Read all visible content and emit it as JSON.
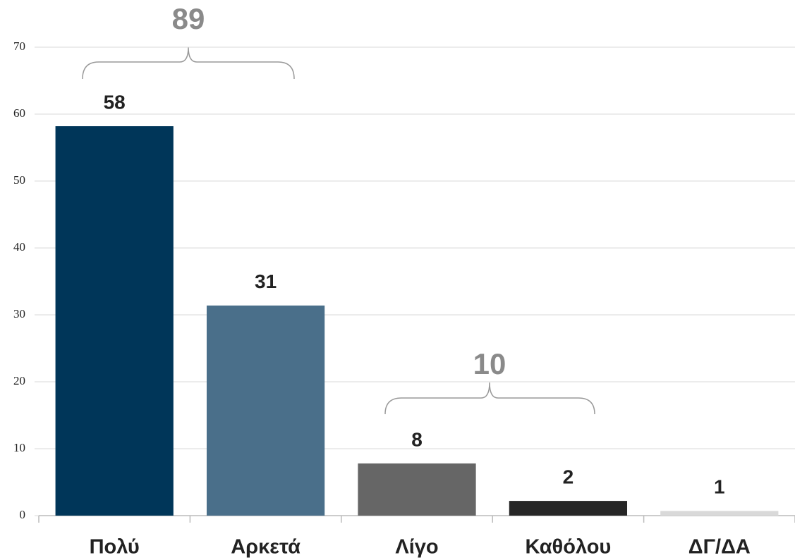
{
  "chart_data": {
    "type": "bar",
    "categories": [
      "Πολύ",
      "Αρκετά",
      "Λίγο",
      "Καθόλου",
      "ΔΓ/ΔΑ"
    ],
    "values": [
      58.2,
      31.4,
      7.8,
      2.2,
      0.7
    ],
    "value_labels": [
      "58",
      "31",
      "8",
      "2",
      "1"
    ],
    "colors": [
      "#003659",
      "#4a6f8a",
      "#666666",
      "#262626",
      "#d9d9d9"
    ],
    "ylim": [
      0,
      70
    ],
    "yticks": [
      0,
      10,
      20,
      30,
      40,
      50,
      60,
      70
    ],
    "grid": true,
    "annotations": [
      "89",
      "10"
    ]
  }
}
